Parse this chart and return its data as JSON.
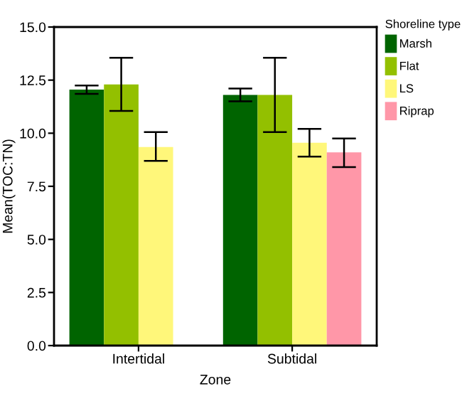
{
  "chart_data": {
    "type": "bar",
    "xlabel": "Zone",
    "ylabel": "Mean(TOC:TN)",
    "legend_title": "Shoreline type",
    "categories": [
      "Intertidal",
      "Subtidal"
    ],
    "series": [
      {
        "name": "Marsh",
        "color": "#006400",
        "values": [
          12.05,
          11.8
        ],
        "errors": [
          [
            11.85,
            12.25
          ],
          [
            11.5,
            12.1
          ]
        ]
      },
      {
        "name": "Flat",
        "color": "#93c000",
        "values": [
          12.3,
          11.8
        ],
        "errors": [
          [
            11.05,
            13.55
          ],
          [
            10.05,
            13.55
          ]
        ]
      },
      {
        "name": "LS",
        "color": "#fff77a",
        "values": [
          9.35,
          9.55
        ],
        "errors": [
          [
            8.7,
            10.05
          ],
          [
            8.9,
            10.2
          ]
        ]
      },
      {
        "name": "Riprap",
        "color": "#ff97a8",
        "values": [
          null,
          9.1
        ],
        "errors": [
          null,
          [
            8.4,
            9.75
          ]
        ]
      }
    ],
    "ylim": [
      0,
      15
    ],
    "yticks": [
      {
        "value": 0,
        "label": "0.0"
      },
      {
        "value": 2.5,
        "label": "2.5"
      },
      {
        "value": 5,
        "label": "5.0"
      },
      {
        "value": 7.5,
        "label": "7.5"
      },
      {
        "value": 10,
        "label": "10.0"
      },
      {
        "value": 12.5,
        "label": "12.5"
      },
      {
        "value": 15,
        "label": "15.0"
      }
    ],
    "grid": false,
    "legend": "right"
  }
}
